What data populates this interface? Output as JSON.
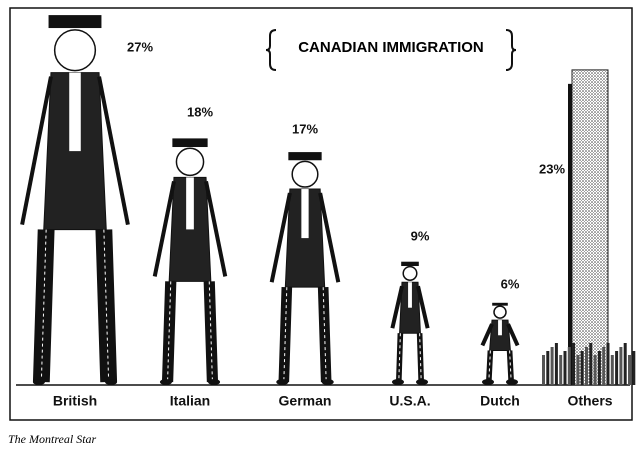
{
  "chart_data": {
    "type": "pictograph",
    "title": "CANADIAN IMMIGRATION",
    "categories": [
      "British",
      "Italian",
      "German",
      "U.S.A.",
      "Dutch",
      "Others"
    ],
    "values": [
      27,
      18,
      17,
      9,
      6,
      23
    ],
    "value_labels": [
      "27%",
      "18%",
      "17%",
      "9%",
      "6%",
      "23%"
    ],
    "source": "The Montreal Star"
  }
}
